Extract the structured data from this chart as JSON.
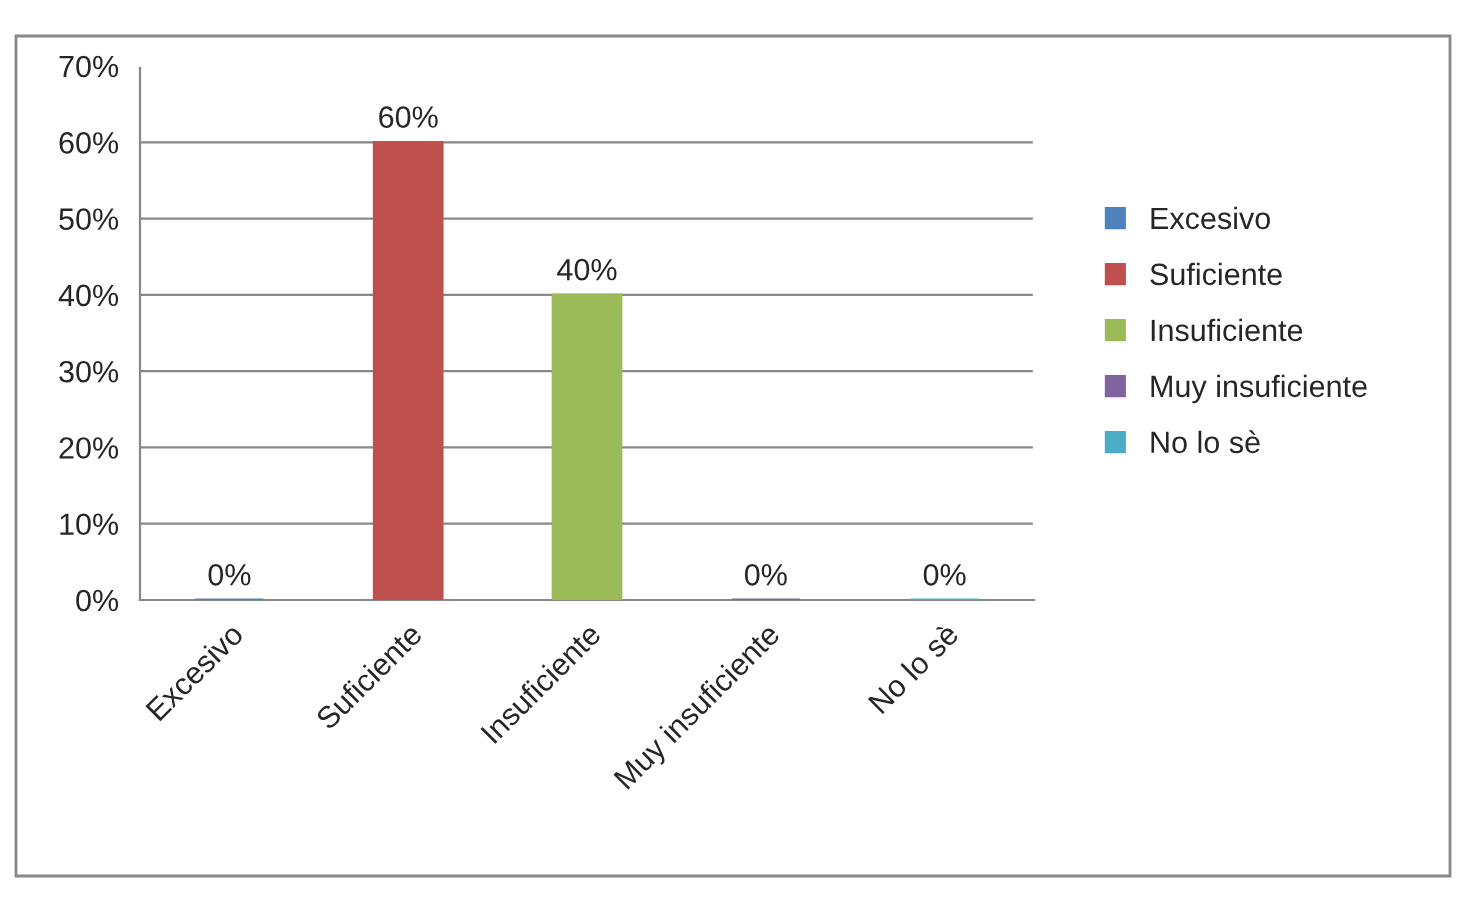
{
  "chart_data": {
    "type": "bar",
    "categories": [
      "Excesivo",
      "Suficiente",
      "Insuficiente",
      "Muy insuficiente",
      "No lo sè"
    ],
    "series": [
      {
        "name": "Excesivo",
        "color": "#4f81bd",
        "values": [
          0,
          null,
          null,
          null,
          null
        ],
        "value_labels": [
          "0%",
          null,
          null,
          null,
          null
        ]
      },
      {
        "name": "Suficiente",
        "color": "#c0504d",
        "values": [
          null,
          60,
          null,
          null,
          null
        ],
        "value_labels": [
          null,
          "60%",
          null,
          null,
          null
        ]
      },
      {
        "name": "Insuficiente",
        "color": "#9bbb59",
        "values": [
          null,
          null,
          40,
          null,
          null
        ],
        "value_labels": [
          null,
          null,
          "40%",
          null,
          null
        ]
      },
      {
        "name": "Muy insuficiente",
        "color": "#8064a2",
        "values": [
          null,
          null,
          null,
          0,
          null
        ],
        "value_labels": [
          null,
          null,
          null,
          "0%",
          null
        ]
      },
      {
        "name": "No lo sè",
        "color": "#4bacc6",
        "values": [
          null,
          null,
          null,
          null,
          0
        ],
        "value_labels": [
          null,
          null,
          null,
          null,
          "0%"
        ]
      }
    ],
    "ylim": [
      0,
      70
    ],
    "yticks": [
      {
        "value": 0,
        "label": "0%"
      },
      {
        "value": 10,
        "label": "10%"
      },
      {
        "value": 20,
        "label": "20%"
      },
      {
        "value": 30,
        "label": "30%"
      },
      {
        "value": 40,
        "label": "40%"
      },
      {
        "value": 50,
        "label": "50%"
      },
      {
        "value": 60,
        "label": "60%"
      },
      {
        "value": 70,
        "label": "70%"
      }
    ],
    "grid": "y",
    "legend": "right"
  }
}
